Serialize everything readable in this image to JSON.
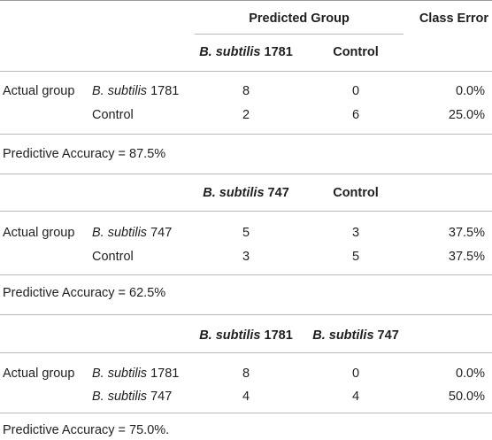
{
  "table": {
    "header": {
      "predicted_group": "Predicted Group",
      "class_error": "Class Error"
    },
    "sections": [
      {
        "col1": {
          "species": "B. subtilis",
          "strain": " 1781"
        },
        "col2": {
          "species": "",
          "strain": "Control"
        },
        "row_label": "Actual group",
        "rows": [
          {
            "species": "B. subtilis",
            "strain": " 1781",
            "v1": "8",
            "v2": "0",
            "err": "0.0%"
          },
          {
            "species": "",
            "strain": "Control",
            "v1": "2",
            "v2": "6",
            "err": "25.0%"
          }
        ],
        "accuracy": "Predictive Accuracy = 87.5%"
      },
      {
        "col1": {
          "species": "B. subtilis",
          "strain": " 747"
        },
        "col2": {
          "species": "",
          "strain": "Control"
        },
        "row_label": "Actual group",
        "rows": [
          {
            "species": "B. subtilis",
            "strain": " 747",
            "v1": "5",
            "v2": "3",
            "err": "37.5%"
          },
          {
            "species": "",
            "strain": "Control",
            "v1": "3",
            "v2": "5",
            "err": "37.5%"
          }
        ],
        "accuracy": "Predictive Accuracy = 62.5%"
      },
      {
        "col1": {
          "species": "B. subtilis",
          "strain": " 1781"
        },
        "col2": {
          "species": "B. subtilis",
          "strain": " 747"
        },
        "row_label": "Actual group",
        "rows": [
          {
            "species": "B. subtilis",
            "strain": " 1781",
            "v1": "8",
            "v2": "0",
            "err": "0.0%"
          },
          {
            "species": "B. subtilis",
            "strain": " 747",
            "v1": "4",
            "v2": "4",
            "err": "50.0%"
          }
        ],
        "accuracy": "Predictive Accuracy = 75.0%."
      }
    ]
  }
}
